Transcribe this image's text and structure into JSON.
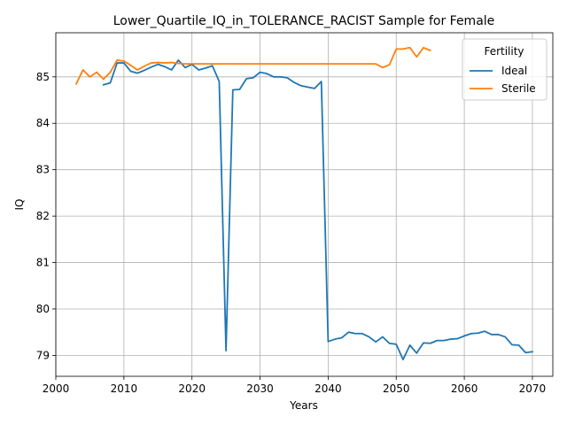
{
  "chart_data": {
    "type": "line",
    "title": "Lower_Quartile_IQ_in_TOLERANCE_RACIST Sample for Female",
    "xlabel": "Years",
    "ylabel": "IQ",
    "xlim": [
      2000,
      2073
    ],
    "ylim": [
      78.55,
      85.95
    ],
    "xticks": [
      2000,
      2010,
      2020,
      2030,
      2040,
      2050,
      2060,
      2070
    ],
    "yticks": [
      79,
      80,
      81,
      82,
      83,
      84,
      85
    ],
    "grid": true,
    "legend": {
      "title": "Fertility",
      "placement": "top-right"
    },
    "series": [
      {
        "name": "Ideal",
        "color": "#1f77b4",
        "x": [
          2007,
          2008,
          2009,
          2010,
          2011,
          2012,
          2013,
          2014,
          2015,
          2016,
          2017,
          2018,
          2019,
          2020,
          2021,
          2022,
          2023,
          2024,
          2025,
          2026,
          2027,
          2028,
          2029,
          2030,
          2031,
          2032,
          2033,
          2034,
          2035,
          2036,
          2037,
          2038,
          2039,
          2040,
          2041,
          2042,
          2043,
          2044,
          2045,
          2046,
          2047,
          2048,
          2049,
          2050,
          2051,
          2052,
          2053,
          2054,
          2055,
          2056,
          2057,
          2058,
          2059,
          2060,
          2061,
          2062,
          2063,
          2064,
          2065,
          2066,
          2067,
          2068,
          2069,
          2070
        ],
        "values": [
          84.83,
          84.87,
          85.3,
          85.3,
          85.12,
          85.08,
          85.14,
          85.21,
          85.27,
          85.22,
          85.15,
          85.36,
          85.2,
          85.27,
          85.15,
          85.19,
          85.24,
          84.9,
          79.1,
          84.72,
          84.73,
          84.96,
          84.98,
          85.1,
          85.07,
          85.0,
          85.0,
          84.98,
          84.88,
          84.81,
          84.78,
          84.75,
          84.9,
          79.3,
          79.35,
          79.38,
          79.5,
          79.47,
          79.47,
          79.4,
          79.29,
          79.4,
          79.26,
          79.24,
          78.91,
          79.22,
          79.05,
          79.27,
          79.26,
          79.32,
          79.32,
          79.35,
          79.36,
          79.42,
          79.47,
          79.48,
          79.52,
          79.45,
          79.45,
          79.4,
          79.23,
          79.22,
          79.06,
          79.08
        ]
      },
      {
        "name": "Sterile",
        "color": "#ff7f0e",
        "x": [
          2003,
          2004,
          2005,
          2006,
          2007,
          2008,
          2009,
          2010,
          2011,
          2012,
          2013,
          2014,
          2015,
          2016,
          2017,
          2018,
          2019,
          2020,
          2021,
          2022,
          2023,
          2024,
          2025,
          2026,
          2027,
          2028,
          2029,
          2030,
          2031,
          2032,
          2033,
          2034,
          2035,
          2036,
          2037,
          2038,
          2039,
          2040,
          2041,
          2042,
          2043,
          2044,
          2045,
          2046,
          2047,
          2048,
          2049,
          2050,
          2051,
          2052,
          2053,
          2054,
          2055
        ],
        "values": [
          84.85,
          85.15,
          85.0,
          85.1,
          84.95,
          85.1,
          85.36,
          85.34,
          85.25,
          85.15,
          85.23,
          85.3,
          85.31,
          85.3,
          85.31,
          85.29,
          85.28,
          85.28,
          85.28,
          85.28,
          85.28,
          85.28,
          85.28,
          85.28,
          85.28,
          85.28,
          85.28,
          85.28,
          85.28,
          85.28,
          85.28,
          85.28,
          85.28,
          85.28,
          85.28,
          85.28,
          85.28,
          85.28,
          85.28,
          85.28,
          85.28,
          85.28,
          85.28,
          85.28,
          85.28,
          85.2,
          85.26,
          85.6,
          85.6,
          85.63,
          85.43,
          85.63,
          85.57
        ]
      }
    ]
  }
}
